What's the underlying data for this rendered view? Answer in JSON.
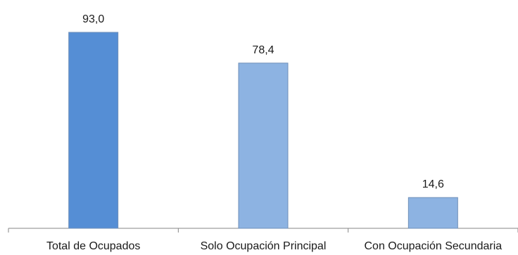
{
  "chart_data": {
    "type": "bar",
    "categories": [
      "Total de Ocupados",
      "Solo Ocupación Principal",
      "Con Ocupación Secundaria"
    ],
    "values": [
      93.0,
      78.4,
      14.6
    ],
    "value_labels": [
      "93,0",
      "78,4",
      "14,6"
    ],
    "ylim": [
      0,
      100
    ],
    "grid": false,
    "legend": "none",
    "colors": {
      "highlight_bar": "#558ed5",
      "bar": "#8db3e2",
      "bar_edge": "#6f8fb8",
      "axis": "#868686"
    }
  }
}
